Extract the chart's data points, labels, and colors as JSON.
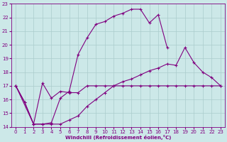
{
  "xlabel": "Windchill (Refroidissement éolien,°C)",
  "bg_color": "#cce8e8",
  "line_color": "#800080",
  "grid_color": "#aacccc",
  "xlim": [
    -0.5,
    23.5
  ],
  "ylim": [
    14,
    23
  ],
  "yticks": [
    14,
    15,
    16,
    17,
    18,
    19,
    20,
    21,
    22,
    23
  ],
  "xticks": [
    0,
    1,
    2,
    3,
    4,
    5,
    6,
    7,
    8,
    9,
    10,
    11,
    12,
    13,
    14,
    15,
    16,
    17,
    18,
    19,
    20,
    21,
    22,
    23
  ],
  "series": [
    {
      "x": [
        0,
        1,
        2,
        3,
        4,
        5,
        6,
        7,
        8,
        9,
        10,
        11,
        12,
        13,
        14,
        15,
        16,
        17,
        18,
        19,
        20,
        21,
        22,
        23
      ],
      "y": [
        17,
        15.8,
        14.2,
        17.2,
        16.1,
        16.6,
        16.5,
        16.5,
        17.0,
        17.0,
        17.0,
        17.0,
        17.0,
        17.0,
        17.0,
        17.0,
        17.0,
        17.0,
        17.0,
        17.0,
        17.0,
        17.0,
        17.0,
        17.0
      ]
    },
    {
      "x": [
        0,
        1,
        2,
        3,
        4,
        5,
        6,
        7,
        8,
        9,
        10,
        11,
        12,
        13,
        14,
        15,
        16,
        17,
        18,
        19,
        20,
        21,
        22,
        23
      ],
      "y": [
        17,
        15.8,
        14.2,
        14.2,
        14.3,
        16.1,
        16.6,
        19.3,
        20.5,
        21.5,
        21.7,
        22.1,
        22.3,
        22.6,
        22.6,
        21.6,
        22.2,
        19.8,
        null,
        null,
        null,
        null,
        null,
        null
      ]
    },
    {
      "x": [
        0,
        2,
        3,
        4,
        5,
        6,
        7,
        8,
        9,
        10,
        11,
        12,
        13,
        14,
        15,
        16,
        17,
        18,
        19,
        20,
        21,
        22,
        23
      ],
      "y": [
        17,
        14.2,
        14.2,
        14.2,
        14.2,
        14.5,
        14.8,
        15.5,
        16.0,
        16.5,
        17.0,
        17.3,
        17.5,
        17.8,
        18.1,
        18.3,
        18.6,
        18.5,
        19.8,
        18.7,
        18.0,
        17.6,
        17.0
      ]
    }
  ]
}
